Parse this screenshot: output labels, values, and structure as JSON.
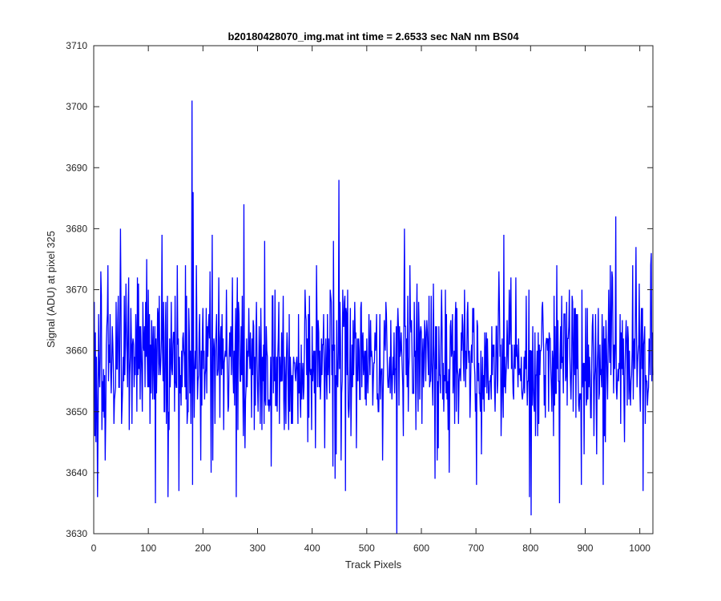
{
  "chart_data": {
    "type": "line",
    "title": "b20180428070_img.mat int time = 2.6533 sec  NaN nm BS04",
    "xlabel": "Track Pixels",
    "ylabel": "Signal (ADU) at pixel 325",
    "xlim": [
      0,
      1024
    ],
    "ylim": [
      3630,
      3710
    ],
    "xticks": [
      0,
      100,
      200,
      300,
      400,
      500,
      600,
      700,
      800,
      900,
      1000
    ],
    "yticks": [
      3630,
      3640,
      3650,
      3660,
      3670,
      3680,
      3690,
      3700,
      3710
    ],
    "grid": false,
    "series_color": "#0000ff",
    "n_points": 1024,
    "mean": 3658,
    "noise_std": 6.5,
    "seed": 20180428,
    "notable_points": [
      {
        "x": 1,
        "y": 3646
      },
      {
        "x": 6,
        "y": 3636
      },
      {
        "x": 12,
        "y": 3673
      },
      {
        "x": 20,
        "y": 3642
      },
      {
        "x": 48,
        "y": 3680
      },
      {
        "x": 79,
        "y": 3672
      },
      {
        "x": 96,
        "y": 3675
      },
      {
        "x": 112,
        "y": 3635
      },
      {
        "x": 124,
        "y": 3679
      },
      {
        "x": 135,
        "y": 3636
      },
      {
        "x": 155,
        "y": 3637
      },
      {
        "x": 179,
        "y": 3701
      },
      {
        "x": 180,
        "y": 3638
      },
      {
        "x": 181,
        "y": 3686
      },
      {
        "x": 216,
        "y": 3679
      },
      {
        "x": 260,
        "y": 3636
      },
      {
        "x": 274,
        "y": 3684
      },
      {
        "x": 312,
        "y": 3678
      },
      {
        "x": 324,
        "y": 3641
      },
      {
        "x": 438,
        "y": 3678
      },
      {
        "x": 448,
        "y": 3688
      },
      {
        "x": 460,
        "y": 3637
      },
      {
        "x": 554,
        "y": 3630
      },
      {
        "x": 568,
        "y": 3680
      },
      {
        "x": 624,
        "y": 3639
      },
      {
        "x": 700,
        "y": 3638
      },
      {
        "x": 750,
        "y": 3679
      },
      {
        "x": 797,
        "y": 3636
      },
      {
        "x": 800,
        "y": 3633
      },
      {
        "x": 852,
        "y": 3635
      },
      {
        "x": 892,
        "y": 3638
      },
      {
        "x": 932,
        "y": 3638
      },
      {
        "x": 955,
        "y": 3682
      },
      {
        "x": 992,
        "y": 3677
      },
      {
        "x": 1005,
        "y": 3637
      },
      {
        "x": 1020,
        "y": 3676
      }
    ]
  }
}
